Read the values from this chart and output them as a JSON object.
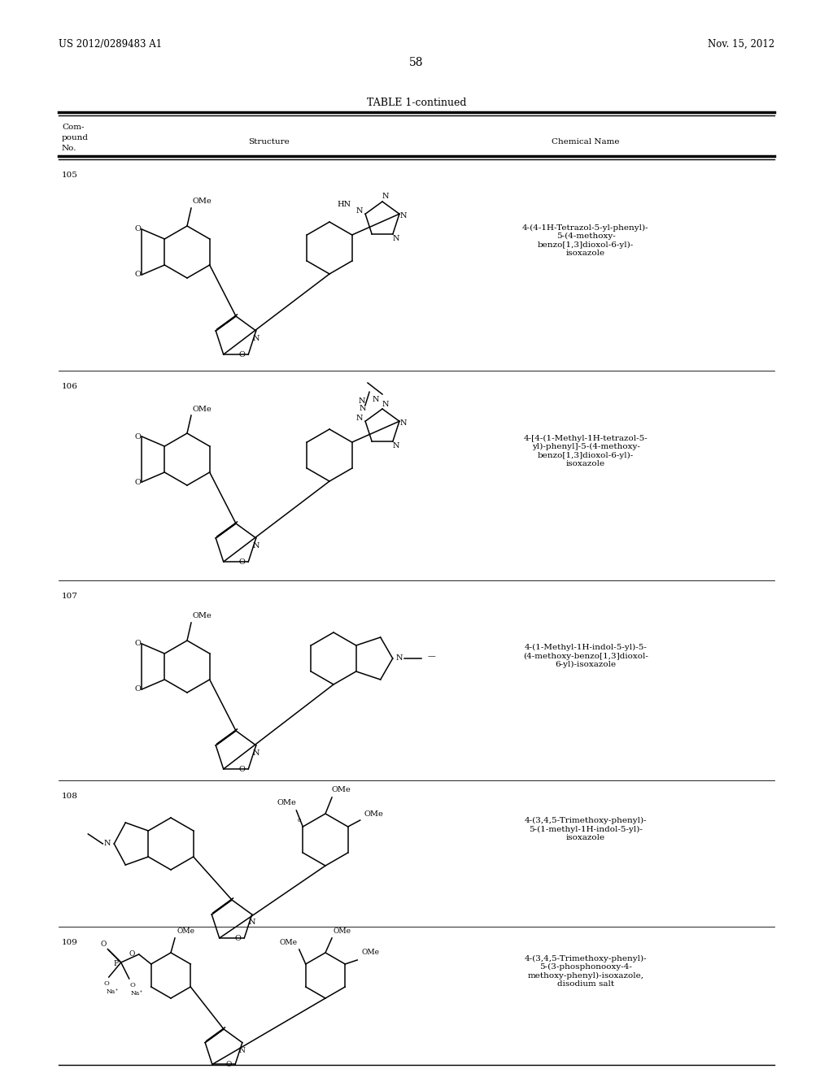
{
  "page_header_left": "US 2012/0289483 A1",
  "page_header_right": "Nov. 15, 2012",
  "page_number": "58",
  "table_title": "TABLE 1-continued",
  "background_color": "#ffffff",
  "text_color": "#000000",
  "compounds": [
    {
      "no": "105",
      "chem_name": "4-(4-1H-Tetrazol-5-yl-phenyl)-\n5-(4-methoxy-\nbenzo[1,3]dioxol-6-yl)-\nisoxazole"
    },
    {
      "no": "106",
      "chem_name": "4-[4-(1-Methyl-1H-tetrazol-5-\nyl)-phenyl]-5-(4-methoxy-\nbenzo[1,3]dioxol-6-yl)-\nisoxazole"
    },
    {
      "no": "107",
      "chem_name": "4-(1-Methyl-1H-indol-5-yl)-5-\n(4-methoxy-benzo[1,3]dioxol-\n6-yl)-isoxazole"
    },
    {
      "no": "108",
      "chem_name": "4-(3,4,5-Trimethoxy-phenyl)-\n5-(1-methyl-1H-indol-5-yl)-\nisoxazole"
    },
    {
      "no": "109",
      "chem_name": "4-(3,4,5-Trimethoxy-phenyl)-\n5-(3-phosphonooxy-4-\nmethoxy-phenyl)-isoxazole,\ndisodium salt"
    }
  ]
}
